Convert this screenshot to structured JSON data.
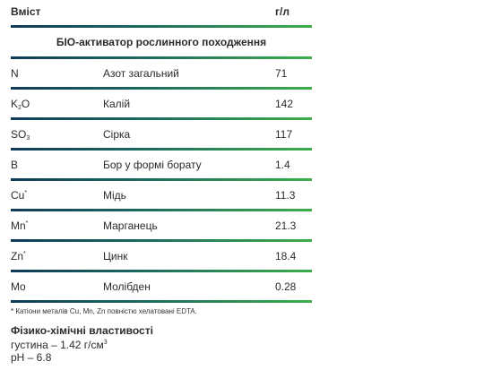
{
  "table": {
    "header_content": "Вміст",
    "header_units": "г/л",
    "section_title": "БІО-активатор рослинного походження",
    "rows": [
      {
        "sym": "N",
        "sub": "",
        "sup": "",
        "tail": "",
        "name": "Азот загальний",
        "value": "71"
      },
      {
        "sym": "K",
        "sub": "2",
        "sup": "",
        "tail": "O",
        "name": "Калій",
        "value": "142"
      },
      {
        "sym": "SO",
        "sub": "3",
        "sup": "",
        "tail": "",
        "name": "Сірка",
        "value": "117"
      },
      {
        "sym": "B",
        "sub": "",
        "sup": "",
        "tail": "",
        "name": "Бор у формі борату",
        "value": "1.4"
      },
      {
        "sym": "Cu",
        "sub": "",
        "sup": "*",
        "tail": "",
        "name": "Мідь",
        "value": "11.3"
      },
      {
        "sym": "Mn",
        "sub": "",
        "sup": "*",
        "tail": "",
        "name": "Марганець",
        "value": "21.3"
      },
      {
        "sym": "Zn",
        "sub": "",
        "sup": "*",
        "tail": "",
        "name": "Цинк",
        "value": "18.4"
      },
      {
        "sym": "Mo",
        "sub": "",
        "sup": "",
        "tail": "",
        "name": "Молібден",
        "value": "0.28"
      }
    ]
  },
  "footnote": "* Катіони металів Cu, Mn, Zn повністю хелатовані EDTA.",
  "properties": {
    "title": "Фізико-хімічні властивості",
    "density_prefix": "густина – 1.42 г/см",
    "density_sup": "3",
    "ph": "pH – 6.8"
  },
  "colors": {
    "rule_start": "#0f3b57",
    "rule_mid": "#1c6b5f",
    "rule_end": "#3cae4a"
  }
}
